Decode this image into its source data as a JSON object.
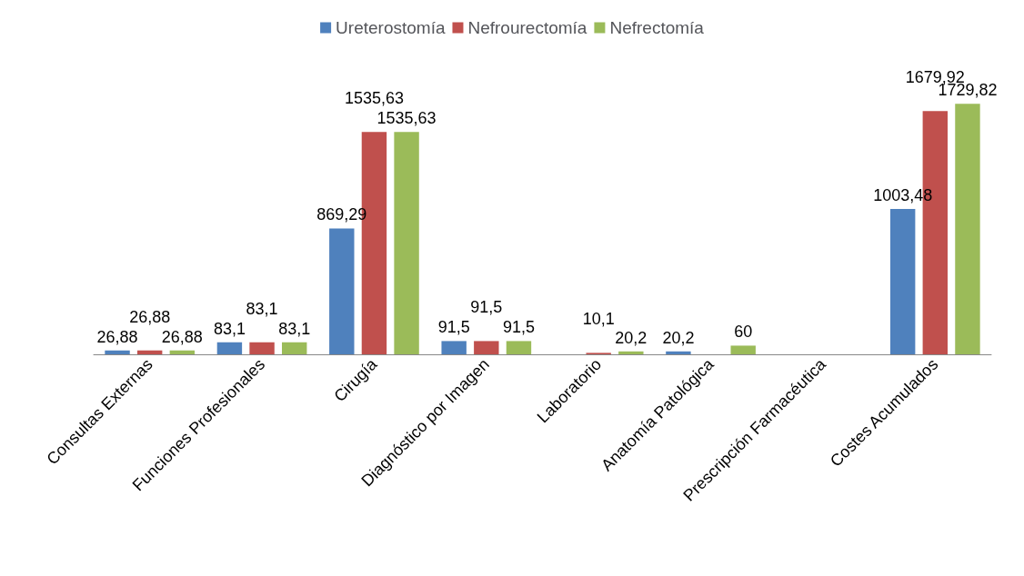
{
  "chart_data": {
    "type": "bar",
    "categories": [
      "Consultas Externas",
      "Funciones Profesionales",
      "Cirugía",
      "Diagnóstico por Imagen",
      "Laboratorio",
      "Anatomía Patológica",
      "Prescripción Farmacéutica",
      "Costes Acumulados"
    ],
    "series": [
      {
        "name": "Ureterostomía",
        "color": "#4f81bd",
        "values": [
          26.88,
          83.1,
          869.29,
          91.5,
          null,
          20.2,
          null,
          1003.48
        ],
        "value_labels": [
          "26,88",
          "83,1",
          "869,29",
          "91,5",
          null,
          "20,2",
          null,
          "1003,48"
        ]
      },
      {
        "name": "Nefrourectomía",
        "color": "#c0504d",
        "values": [
          26.88,
          83.1,
          1535.63,
          91.5,
          10.1,
          null,
          null,
          1679.92
        ],
        "value_labels": [
          "26,88",
          "83,1",
          "1535,63",
          "91,5",
          "10,1",
          null,
          null,
          "1679,92"
        ]
      },
      {
        "name": "Nefrectomía",
        "color": "#9bbb59",
        "values": [
          26.88,
          83.1,
          1535.63,
          91.5,
          20.2,
          60,
          null,
          1729.82
        ],
        "value_labels": [
          "26,88",
          "83,1",
          "1535,63",
          "91,5",
          "20,2",
          "60",
          null,
          "1729,82"
        ]
      }
    ],
    "legend": "top",
    "grid": false
  }
}
